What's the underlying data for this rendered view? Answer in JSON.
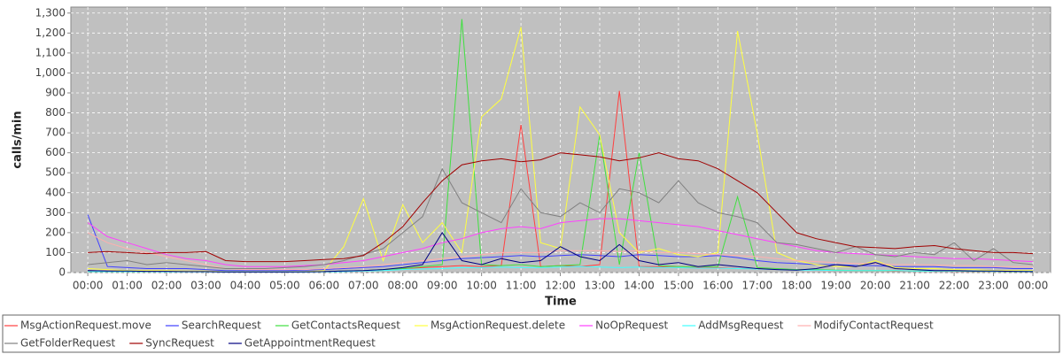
{
  "chart_data": {
    "type": "line",
    "xlabel": "Time",
    "ylabel": "calls/min",
    "x": [
      0,
      0.5,
      1,
      1.5,
      2,
      2.5,
      3,
      3.5,
      4,
      4.5,
      5,
      5.5,
      6,
      6.5,
      7,
      7.5,
      8,
      8.5,
      9,
      9.5,
      10,
      10.5,
      11,
      11.5,
      12,
      12.5,
      13,
      13.5,
      14,
      14.5,
      15,
      15.5,
      16,
      16.5,
      17,
      17.5,
      18,
      18.5,
      19,
      19.5,
      20,
      20.5,
      21,
      21.5,
      22,
      22.5,
      23,
      23.5,
      24
    ],
    "xlim": [
      -0.43,
      24.45
    ],
    "xticks": [
      {
        "value": 0,
        "label": "00:00"
      },
      {
        "value": 1,
        "label": "01:00"
      },
      {
        "value": 2,
        "label": "02:00"
      },
      {
        "value": 3,
        "label": "03:00"
      },
      {
        "value": 4,
        "label": "04:00"
      },
      {
        "value": 5,
        "label": "05:00"
      },
      {
        "value": 6,
        "label": "06:00"
      },
      {
        "value": 7,
        "label": "07:00"
      },
      {
        "value": 8,
        "label": "08:00"
      },
      {
        "value": 9,
        "label": "09:00"
      },
      {
        "value": 10,
        "label": "10:00"
      },
      {
        "value": 11,
        "label": "11:00"
      },
      {
        "value": 12,
        "label": "12:00"
      },
      {
        "value": 13,
        "label": "13:00"
      },
      {
        "value": 14,
        "label": "14:00"
      },
      {
        "value": 15,
        "label": "15:00"
      },
      {
        "value": 16,
        "label": "16:00"
      },
      {
        "value": 17,
        "label": "17:00"
      },
      {
        "value": 18,
        "label": "18:00"
      },
      {
        "value": 19,
        "label": "19:00"
      },
      {
        "value": 20,
        "label": "20:00"
      },
      {
        "value": 21,
        "label": "21:00"
      },
      {
        "value": 22,
        "label": "22:00"
      },
      {
        "value": 23,
        "label": "23:00"
      },
      {
        "value": 24,
        "label": "00:00"
      }
    ],
    "ylim": [
      0,
      1330
    ],
    "yticks": [
      0,
      100,
      200,
      300,
      400,
      500,
      600,
      700,
      800,
      900,
      {
        "value": 1000,
        "label": "1,000"
      },
      {
        "value": 1100,
        "label": "1,100"
      },
      {
        "value": 1200,
        "label": "1,200"
      },
      {
        "value": 1300,
        "label": "1,300"
      }
    ],
    "grid": true,
    "legend": "bottom",
    "series": [
      {
        "name": "MsgActionRequest.move",
        "color": "#ff4040",
        "values": [
          10,
          8,
          8,
          6,
          6,
          5,
          5,
          3,
          3,
          3,
          3,
          4,
          5,
          8,
          10,
          15,
          20,
          25,
          30,
          35,
          30,
          35,
          740,
          30,
          35,
          30,
          40,
          910,
          30,
          30,
          25,
          25,
          25,
          20,
          20,
          15,
          15,
          12,
          10,
          10,
          10,
          8,
          8,
          8,
          6,
          6,
          6,
          5,
          5
        ]
      },
      {
        "name": "SearchRequest",
        "color": "#4040ff",
        "values": [
          290,
          30,
          25,
          20,
          20,
          20,
          15,
          10,
          10,
          10,
          10,
          12,
          15,
          20,
          25,
          30,
          40,
          50,
          60,
          70,
          75,
          80,
          85,
          80,
          85,
          90,
          85,
          80,
          90,
          85,
          80,
          80,
          85,
          75,
          60,
          50,
          45,
          40,
          40,
          35,
          35,
          30,
          30,
          30,
          25,
          25,
          25,
          20,
          20
        ]
      },
      {
        "name": "GetContactsRequest",
        "color": "#40e040",
        "values": [
          5,
          5,
          5,
          5,
          5,
          5,
          5,
          3,
          3,
          3,
          3,
          3,
          5,
          8,
          10,
          15,
          20,
          30,
          40,
          1270,
          40,
          35,
          40,
          30,
          35,
          40,
          690,
          40,
          600,
          35,
          30,
          30,
          30,
          380,
          25,
          20,
          15,
          15,
          12,
          10,
          10,
          10,
          8,
          8,
          8,
          6,
          6,
          5,
          5
        ]
      },
      {
        "name": "MsgActionRequest.delete",
        "color": "#ffff40",
        "values": [
          20,
          15,
          10,
          10,
          10,
          8,
          8,
          5,
          5,
          5,
          5,
          5,
          10,
          130,
          370,
          60,
          340,
          150,
          250,
          100,
          780,
          870,
          1230,
          150,
          120,
          830,
          690,
          200,
          100,
          120,
          90,
          80,
          100,
          1210,
          700,
          100,
          60,
          40,
          30,
          30,
          60,
          25,
          20,
          20,
          15,
          15,
          10,
          10,
          10
        ]
      },
      {
        "name": "NoOpRequest",
        "color": "#ff40ff",
        "values": [
          250,
          180,
          150,
          120,
          90,
          70,
          60,
          40,
          30,
          30,
          30,
          35,
          40,
          50,
          60,
          80,
          100,
          120,
          150,
          170,
          200,
          220,
          230,
          220,
          250,
          260,
          270,
          270,
          260,
          250,
          240,
          230,
          210,
          190,
          170,
          150,
          130,
          110,
          100,
          95,
          90,
          85,
          80,
          75,
          70,
          70,
          65,
          60,
          55
        ]
      },
      {
        "name": "AddMsgRequest",
        "color": "#40ffff",
        "values": [
          5,
          5,
          5,
          5,
          4,
          4,
          4,
          3,
          3,
          3,
          3,
          3,
          4,
          5,
          8,
          10,
          15,
          18,
          20,
          25,
          25,
          28,
          25,
          25,
          28,
          30,
          28,
          25,
          28,
          25,
          25,
          22,
          22,
          20,
          18,
          15,
          12,
          12,
          10,
          10,
          10,
          10,
          8,
          8,
          8,
          8,
          6,
          6,
          6
        ]
      },
      {
        "name": "ModifyContactRequest",
        "color": "#ffafaf",
        "values": [
          200,
          150,
          120,
          100,
          80,
          60,
          40,
          20,
          15,
          15,
          15,
          15,
          20,
          25,
          30,
          40,
          50,
          60,
          70,
          80,
          90,
          100,
          100,
          100,
          110,
          110,
          110,
          105,
          110,
          100,
          100,
          95,
          90,
          85,
          80,
          70,
          60,
          55,
          50,
          45,
          45,
          40,
          40,
          38,
          35,
          35,
          30,
          30,
          30
        ]
      },
      {
        "name": "GetFolderRequest",
        "color": "#808080",
        "values": [
          40,
          50,
          60,
          40,
          50,
          40,
          30,
          20,
          20,
          20,
          25,
          30,
          40,
          60,
          90,
          120,
          200,
          280,
          520,
          350,
          300,
          250,
          420,
          300,
          280,
          350,
          300,
          420,
          400,
          350,
          460,
          350,
          300,
          280,
          250,
          150,
          140,
          120,
          100,
          130,
          90,
          80,
          100,
          90,
          150,
          60,
          120,
          50,
          40
        ]
      },
      {
        "name": "SyncRequest",
        "color": "#a00000",
        "values": [
          100,
          105,
          100,
          95,
          100,
          100,
          105,
          60,
          55,
          55,
          55,
          60,
          65,
          70,
          85,
          150,
          230,
          350,
          460,
          540,
          560,
          570,
          555,
          565,
          600,
          590,
          580,
          560,
          575,
          600,
          570,
          560,
          520,
          460,
          400,
          300,
          200,
          170,
          150,
          130,
          125,
          120,
          130,
          135,
          120,
          110,
          100,
          100,
          95
        ]
      },
      {
        "name": "GetAppointmentRequest",
        "color": "#000080",
        "values": [
          10,
          8,
          8,
          6,
          6,
          5,
          5,
          3,
          3,
          3,
          3,
          4,
          5,
          8,
          10,
          15,
          25,
          40,
          200,
          60,
          40,
          70,
          50,
          60,
          130,
          80,
          60,
          140,
          60,
          40,
          50,
          30,
          40,
          30,
          20,
          15,
          12,
          20,
          40,
          30,
          50,
          20,
          15,
          10,
          10,
          8,
          8,
          6,
          5
        ]
      }
    ]
  }
}
